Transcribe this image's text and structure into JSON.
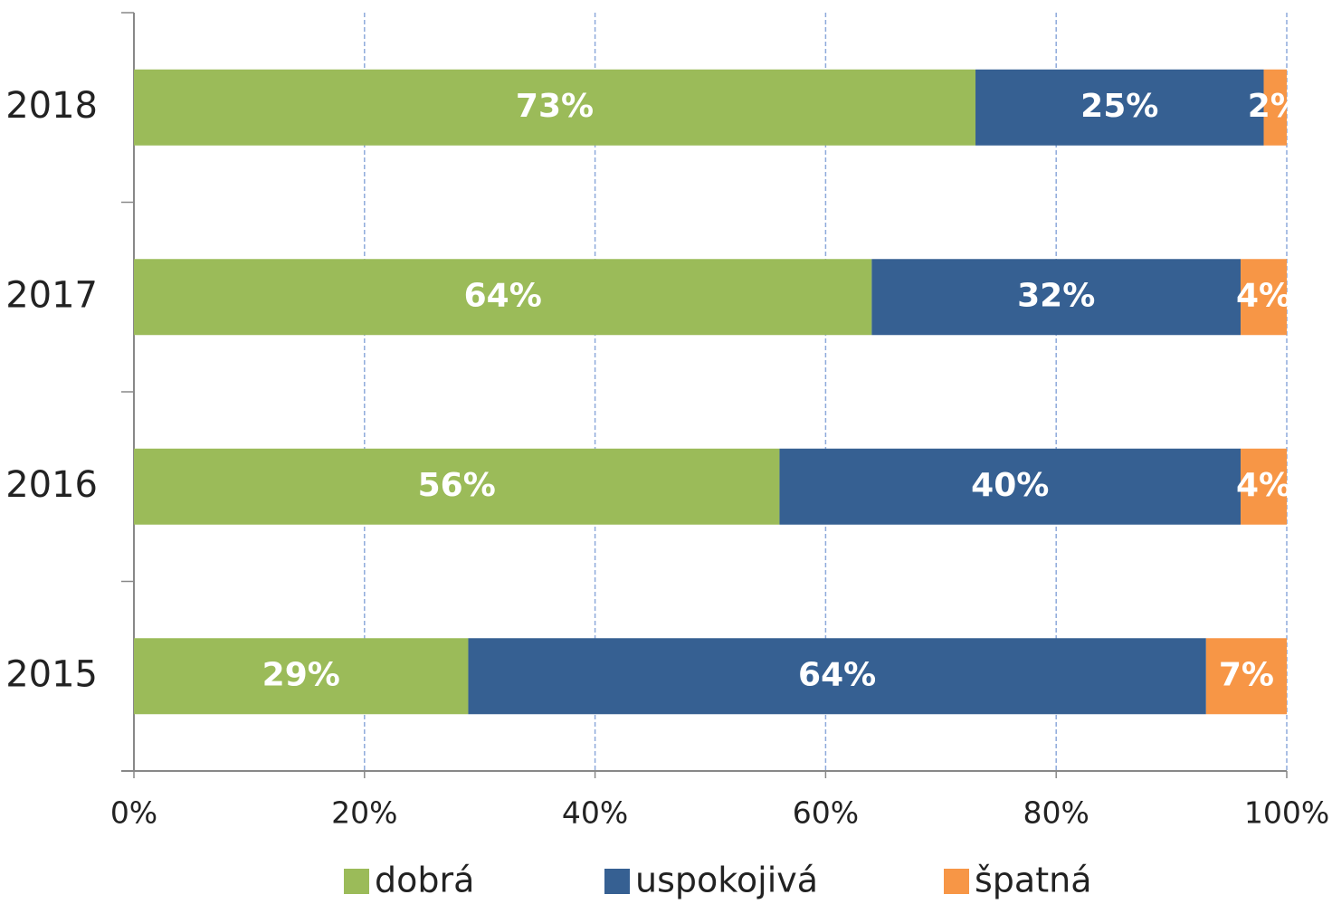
{
  "chart_data": {
    "type": "stacked_barh",
    "categories": [
      "2018",
      "2017",
      "2016",
      "2015"
    ],
    "series": [
      {
        "name": "dobrá",
        "color": "#9bbb59",
        "values": [
          73,
          64,
          56,
          29
        ],
        "value_labels": [
          "73%",
          "64%",
          "56%",
          "29%"
        ]
      },
      {
        "name": "uspokojivá",
        "color": "#366092",
        "values": [
          25,
          32,
          40,
          64
        ],
        "value_labels": [
          "25%",
          "32%",
          "40%",
          "64%"
        ]
      },
      {
        "name": "špatná",
        "color": "#f79646",
        "values": [
          2,
          4,
          4,
          7
        ],
        "value_labels": [
          "2%",
          "4%",
          "4%",
          "7%"
        ]
      }
    ],
    "xlim": [
      0,
      100
    ],
    "xticks": [
      {
        "value": 0,
        "label": "0%"
      },
      {
        "value": 20,
        "label": "20%"
      },
      {
        "value": 40,
        "label": "40%"
      },
      {
        "value": 60,
        "label": "60%"
      },
      {
        "value": 80,
        "label": "80%"
      },
      {
        "value": 100,
        "label": "100%"
      }
    ],
    "grid": true,
    "legend": "bottom"
  }
}
